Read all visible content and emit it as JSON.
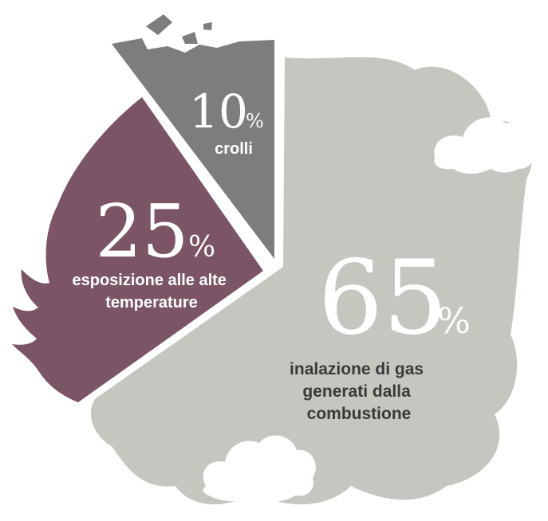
{
  "chart_data": {
    "type": "pie",
    "title": "",
    "slices": [
      {
        "value": 65,
        "percent_sign": "%",
        "label_lines": [
          "inalazione di gas",
          "generati dalla",
          "combustione"
        ],
        "color": "#c3c7c0",
        "text_color": "#3a3a3a"
      },
      {
        "value": 25,
        "percent_sign": "%",
        "label_lines": [
          "esposizione alle alte",
          "temperature"
        ],
        "color": "#7b5466",
        "text_color": "#ffffff"
      },
      {
        "value": 10,
        "percent_sign": "%",
        "label_lines": [
          "crolli"
        ],
        "color": "#7d7d7d",
        "text_color": "#ffffff"
      }
    ]
  },
  "colors": {
    "background": "#ffffff",
    "cloud": "#c3c7c0",
    "flame": "#7b5466",
    "rubble": "#7d7d7d"
  }
}
